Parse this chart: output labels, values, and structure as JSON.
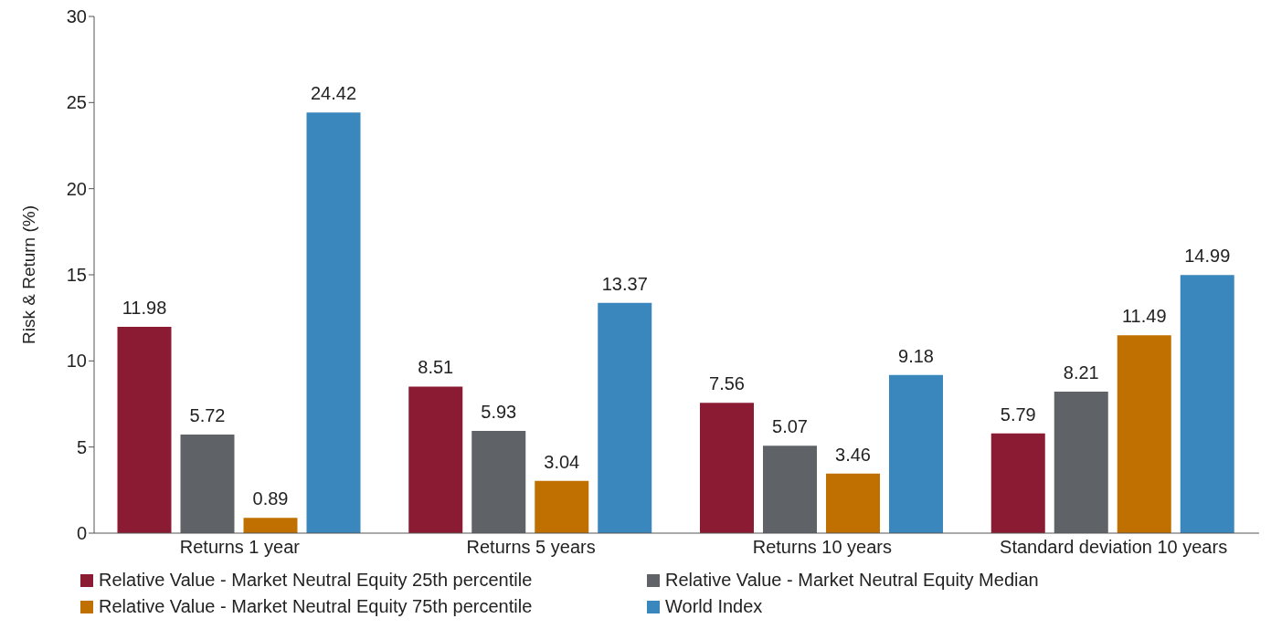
{
  "chart_data": {
    "type": "bar",
    "ylabel": "Risk & Return (%)",
    "categories": [
      "Returns 1 year",
      "Returns 5 years",
      "Returns 10 years",
      "Standard deviation 10 years"
    ],
    "series": [
      {
        "name": "Relative Value - Market Neutral Equity 25th percentile",
        "color": "#8b1a33",
        "values": [
          11.98,
          8.51,
          7.56,
          5.79
        ]
      },
      {
        "name": "Relative Value - Market Neutral Equity Median",
        "color": "#5f6367",
        "values": [
          5.72,
          5.93,
          5.07,
          8.21
        ]
      },
      {
        "name": "Relative Value - Market Neutral Equity 75th percentile",
        "color": "#c07000",
        "values": [
          0.89,
          3.04,
          3.46,
          11.49
        ]
      },
      {
        "name": "World Index",
        "color": "#3a87bd",
        "values": [
          24.42,
          13.37,
          9.18,
          14.99
        ]
      }
    ],
    "ylim": [
      0,
      30
    ],
    "yticks": [
      0,
      5,
      10,
      15,
      20,
      25,
      30
    ],
    "grid": false,
    "data_labels": true,
    "legend": "bottom"
  }
}
